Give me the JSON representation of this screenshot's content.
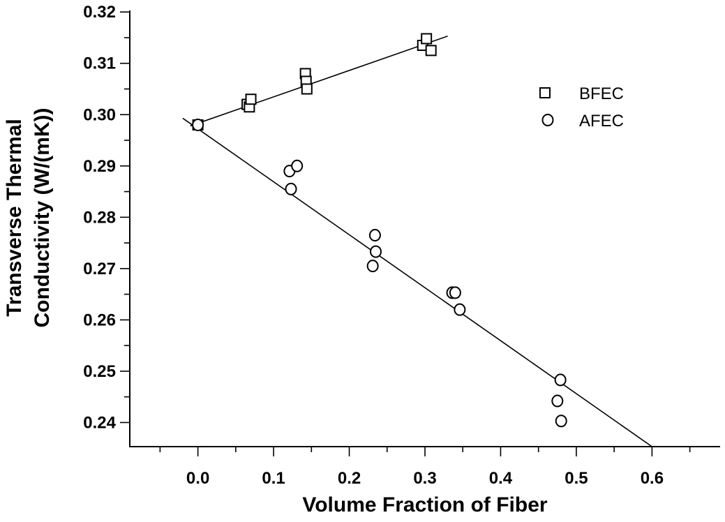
{
  "chart_data": {
    "type": "scatter",
    "xlabel": "Volume Fraction of Fiber",
    "ylabel_line1": "Transverse Thermal",
    "ylabel_line2": "Conductivity (W/(mK))",
    "xlim": [
      -0.09,
      0.69
    ],
    "ylim": [
      0.2353,
      0.3203
    ],
    "x_ticks": [
      0.0,
      0.1,
      0.2,
      0.3,
      0.4,
      0.5,
      0.6
    ],
    "x_tick_labels": [
      "0.0",
      "0.1",
      "0.2",
      "0.3",
      "0.4",
      "0.5",
      "0.6"
    ],
    "y_ticks": [
      0.24,
      0.25,
      0.26,
      0.27,
      0.28,
      0.29,
      0.3,
      0.31,
      0.32
    ],
    "y_tick_labels": [
      "0.24",
      "0.25",
      "0.26",
      "0.27",
      "0.28",
      "0.29",
      "0.30",
      "0.31",
      "0.32"
    ],
    "legend_position": "upper-right",
    "series": [
      {
        "name": "BFEC",
        "marker": "square",
        "points": [
          [
            0.0,
            0.298
          ],
          [
            0.065,
            0.302
          ],
          [
            0.068,
            0.3015
          ],
          [
            0.07,
            0.303
          ],
          [
            0.142,
            0.308
          ],
          [
            0.143,
            0.3065
          ],
          [
            0.144,
            0.305
          ],
          [
            0.297,
            0.3135
          ],
          [
            0.302,
            0.3148
          ],
          [
            0.308,
            0.3125
          ]
        ],
        "fit_line": [
          [
            -0.01,
            0.2978
          ],
          [
            0.33,
            0.3153
          ]
        ]
      },
      {
        "name": "AFEC",
        "marker": "circle",
        "points": [
          [
            0.0,
            0.298
          ],
          [
            0.121,
            0.289
          ],
          [
            0.131,
            0.29
          ],
          [
            0.123,
            0.2855
          ],
          [
            0.234,
            0.2765
          ],
          [
            0.235,
            0.2733
          ],
          [
            0.231,
            0.2705
          ],
          [
            0.336,
            0.2653
          ],
          [
            0.34,
            0.2653
          ],
          [
            0.346,
            0.262
          ],
          [
            0.479,
            0.2483
          ],
          [
            0.475,
            0.2442
          ],
          [
            0.48,
            0.2403
          ]
        ],
        "fit_line": [
          [
            -0.02,
            0.2993
          ],
          [
            0.6,
            0.2353
          ]
        ]
      }
    ]
  }
}
